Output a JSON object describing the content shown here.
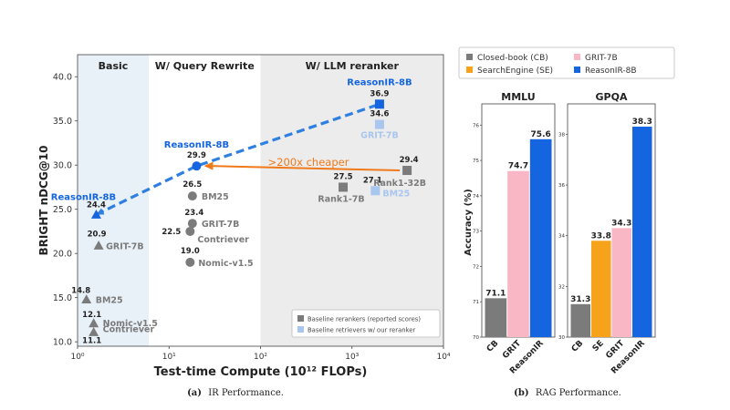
{
  "chart_data": [
    {
      "type": "scatter",
      "panel": "left",
      "caption_label": "(a)",
      "caption_text": "IR Performance.",
      "xlabel": "Test-time Compute (10¹² FLOPs)",
      "ylabel": "BRIGHT nDCG@10",
      "xscale": "log",
      "xlim": [
        1,
        10000
      ],
      "ylim": [
        9.5,
        42.5
      ],
      "xticks": [
        {
          "value": 1,
          "label": "10⁰"
        },
        {
          "value": 10,
          "label": "10¹"
        },
        {
          "value": 100,
          "label": "10²"
        },
        {
          "value": 1000,
          "label": "10³"
        },
        {
          "value": 10000,
          "label": "10⁴"
        }
      ],
      "yticks": [
        {
          "value": 10,
          "label": "10.0"
        },
        {
          "value": 15,
          "label": "15.0"
        },
        {
          "value": 20,
          "label": "20.0"
        },
        {
          "value": 25,
          "label": "25.0"
        },
        {
          "value": 30,
          "label": "30.0"
        },
        {
          "value": 35,
          "label": "35.0"
        },
        {
          "value": 40,
          "label": "40.0"
        }
      ],
      "regions": [
        {
          "label": "Basic",
          "x_from": 1,
          "x_to": 6,
          "color": "#e9f1f8"
        },
        {
          "label": "W/ Query Rewrite",
          "x_from": 6,
          "x_to": 100,
          "color": "#ffffff"
        },
        {
          "label": "W/ LLM reranker",
          "x_from": 100,
          "x_to": 10000,
          "color": "#ececec"
        }
      ],
      "points": [
        {
          "x": 1.6,
          "y": 24.4,
          "marker": "triangle",
          "group": "reasonir",
          "value_label": "24.4",
          "name_label": "ReasonIR-8B"
        },
        {
          "x": 1.7,
          "y": 20.9,
          "marker": "triangle",
          "group": "gray",
          "value_label": "20.9",
          "name_label": "GRIT-7B"
        },
        {
          "x": 1.25,
          "y": 14.8,
          "marker": "triangle",
          "group": "gray",
          "value_label": "14.8",
          "name_label": "BM25"
        },
        {
          "x": 1.5,
          "y": 12.1,
          "marker": "triangle",
          "group": "gray",
          "value_label": "12.1",
          "name_label": "Nomic-v1.5"
        },
        {
          "x": 1.5,
          "y": 11.1,
          "marker": "triangle",
          "group": "gray",
          "value_label": "11.1",
          "name_label": "Contriever"
        },
        {
          "x": 20,
          "y": 29.9,
          "marker": "circle",
          "group": "reasonir",
          "value_label": "29.9",
          "name_label": "ReasonIR-8B"
        },
        {
          "x": 18,
          "y": 26.5,
          "marker": "circle",
          "group": "gray",
          "value_label": "26.5",
          "name_label": "BM25"
        },
        {
          "x": 18,
          "y": 23.4,
          "marker": "circle",
          "group": "gray",
          "value_label": "23.4",
          "name_label": "GRIT-7B"
        },
        {
          "x": 17,
          "y": 22.5,
          "marker": "circle",
          "group": "gray",
          "value_label": "22.5",
          "name_label": "Contriever"
        },
        {
          "x": 17,
          "y": 19.0,
          "marker": "circle",
          "group": "gray",
          "value_label": "19.0",
          "name_label": "Nomic-v1.5"
        },
        {
          "x": 2000,
          "y": 36.9,
          "marker": "square",
          "group": "reasonir",
          "value_label": "36.9",
          "name_label": "ReasonIR-8B"
        },
        {
          "x": 2000,
          "y": 34.6,
          "marker": "square",
          "group": "light",
          "value_label": "34.6",
          "name_label": "GRIT-7B"
        },
        {
          "x": 1800,
          "y": 27.1,
          "marker": "square",
          "group": "light",
          "value_label": "27.1",
          "name_label": "BM25"
        },
        {
          "x": 4000,
          "y": 29.4,
          "marker": "square",
          "group": "gray",
          "value_label": "29.4",
          "name_label": "Rank1-32B"
        },
        {
          "x": 800,
          "y": 27.5,
          "marker": "square",
          "group": "gray",
          "value_label": "27.5",
          "name_label": "Rank1-7B"
        }
      ],
      "trend_line": {
        "points": [
          [
            1.6,
            24.4
          ],
          [
            20,
            29.9
          ],
          [
            2000,
            36.9
          ]
        ],
        "color": "#2f7fe0",
        "style": "dashed"
      },
      "annotation": {
        "text": ">200x cheaper",
        "from": [
          4000,
          29.4
        ],
        "to": [
          20,
          29.9
        ],
        "color": "#f07a1a"
      },
      "legend": {
        "position": "bottom-right",
        "entries": [
          {
            "label": "Baseline rerankers (reported scores)",
            "color": "#7b7b7b"
          },
          {
            "label": "Baseline retrievers w/ our reranker",
            "color": "#a9c6ee"
          }
        ]
      },
      "colors": {
        "reasonir": "#1565e0",
        "gray": "#7b7b7b",
        "light": "#a9c6ee"
      }
    },
    {
      "type": "bar",
      "panel": "right",
      "caption_label": "(b)",
      "caption_text": "RAG Performance.",
      "ylabel": "Accuracy (%)",
      "legend": {
        "position": "top",
        "entries": [
          {
            "label": "Closed-book (CB)",
            "color": "#7b7b7b"
          },
          {
            "label": "GRIT-7B",
            "color": "#f9b6c4"
          },
          {
            "label": "SearchEngine (SE)",
            "color": "#f7a21b"
          },
          {
            "label": "ReasonIR-8B",
            "color": "#1565e0"
          }
        ]
      },
      "subplots": [
        {
          "title": "MMLU",
          "ylim": [
            70,
            76.6
          ],
          "yticks": [
            70,
            71,
            72,
            73,
            74,
            75,
            76
          ],
          "categories": [
            "CB",
            "GRIT",
            "ReasonIR"
          ],
          "values": [
            71.1,
            74.7,
            75.6
          ],
          "labels": [
            "71.1",
            "74.7",
            "75.6"
          ],
          "colors": [
            "#7b7b7b",
            "#f9b6c4",
            "#1565e0"
          ]
        },
        {
          "title": "GPQA",
          "ylim": [
            30,
            39.2
          ],
          "yticks": [
            30,
            32,
            34,
            36,
            38
          ],
          "categories": [
            "CB",
            "SE",
            "GRIT",
            "ReasonIR"
          ],
          "values": [
            31.3,
            33.8,
            34.3,
            38.3
          ],
          "labels": [
            "31.3",
            "33.8",
            "34.3",
            "38.3"
          ],
          "colors": [
            "#7b7b7b",
            "#f7a21b",
            "#f9b6c4",
            "#1565e0"
          ]
        }
      ]
    }
  ]
}
